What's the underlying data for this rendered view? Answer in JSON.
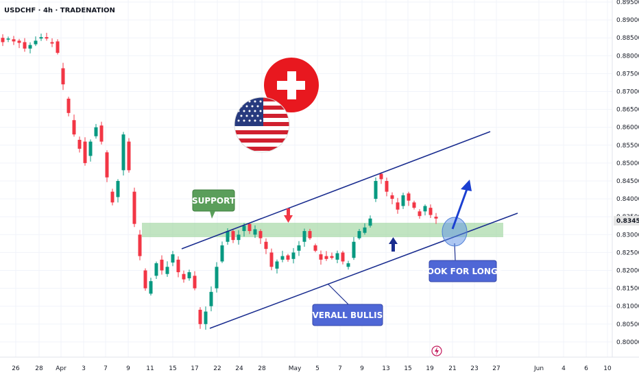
{
  "header": {
    "symbol": "USDCHF",
    "interval": "4h",
    "source": "TRADENATION"
  },
  "chart_data": {
    "type": "candlestick",
    "title": "USDCHF · 4h · TRADENATION",
    "ylim": [
      0.795,
      0.8955
    ],
    "y_ticks": [
      "0.89500",
      "0.89000",
      "0.88500",
      "0.88000",
      "0.87500",
      "0.87000",
      "0.86500",
      "0.86000",
      "0.85500",
      "0.85000",
      "0.84500",
      "0.84000",
      "0.83500",
      "0.83000",
      "0.82500",
      "0.82000",
      "0.81500",
      "0.81000",
      "0.80500",
      "0.80000"
    ],
    "x_ticks": [
      "26",
      "28",
      "Apr",
      "3",
      "7",
      "9",
      "11",
      "15",
      "17",
      "22",
      "24",
      "28",
      "May",
      "5",
      "7",
      "9",
      "13",
      "15",
      "19",
      "21",
      "23",
      "27",
      "Jun",
      "4",
      "6",
      "10"
    ],
    "current_price": "0.83453",
    "price_path": [
      [
        0.885,
        0.8838
      ],
      [
        0.8845,
        0.8848
      ],
      [
        0.8846,
        0.884
      ],
      [
        0.8842,
        0.8836
      ],
      [
        0.8838,
        0.882
      ],
      [
        0.882,
        0.883
      ],
      [
        0.8832,
        0.8842
      ],
      [
        0.8848,
        0.8852
      ],
      [
        0.8852,
        0.8848
      ],
      [
        0.8838,
        0.8834
      ],
      [
        0.884,
        0.8808
      ],
      [
        0.8765,
        0.872
      ],
      [
        0.868,
        0.864
      ],
      [
        0.862,
        0.858
      ],
      [
        0.8565,
        0.854
      ],
      [
        0.856,
        0.85
      ],
      [
        0.852,
        0.856
      ],
      [
        0.8575,
        0.86
      ],
      [
        0.8605,
        0.856
      ],
      [
        0.853,
        0.846
      ],
      [
        0.842,
        0.839
      ],
      [
        0.8405,
        0.845
      ],
      [
        0.848,
        0.858
      ],
      [
        0.856,
        0.848
      ],
      [
        0.842,
        0.833
      ],
      [
        0.83,
        0.824
      ],
      [
        0.82,
        0.815
      ],
      [
        0.8135,
        0.817
      ],
      [
        0.8185,
        0.822
      ],
      [
        0.823,
        0.82
      ],
      [
        0.819,
        0.821
      ],
      [
        0.8222,
        0.8245
      ],
      [
        0.823,
        0.8195
      ],
      [
        0.819,
        0.8175
      ],
      [
        0.8178,
        0.8195
      ],
      [
        0.8185,
        0.815
      ],
      [
        0.809,
        0.805
      ],
      [
        0.805,
        0.8085
      ],
      [
        0.81,
        0.814
      ],
      [
        0.815,
        0.821
      ],
      [
        0.8225,
        0.827
      ],
      [
        0.828,
        0.831
      ],
      [
        0.831,
        0.8285
      ],
      [
        0.8285,
        0.83
      ],
      [
        0.831,
        0.8325
      ],
      [
        0.833,
        0.831
      ],
      [
        0.83,
        0.8315
      ],
      [
        0.831,
        0.829
      ],
      [
        0.828,
        0.826
      ],
      [
        0.825,
        0.821
      ],
      [
        0.8205,
        0.8225
      ],
      [
        0.823,
        0.824
      ],
      [
        0.8242,
        0.823
      ],
      [
        0.8232,
        0.825
      ],
      [
        0.8255,
        0.827
      ],
      [
        0.828,
        0.831
      ],
      [
        0.831,
        0.829
      ],
      [
        0.827,
        0.8255
      ],
      [
        0.8245,
        0.823
      ],
      [
        0.824,
        0.8232
      ],
      [
        0.824,
        0.8235
      ],
      [
        0.823,
        0.8248
      ],
      [
        0.825,
        0.8225
      ],
      [
        0.821,
        0.822
      ],
      [
        0.8235,
        0.828
      ],
      [
        0.829,
        0.831
      ],
      [
        0.8305,
        0.832
      ],
      [
        0.8325,
        0.8345
      ],
      [
        0.84,
        0.845
      ],
      [
        0.847,
        0.8455
      ],
      [
        0.845,
        0.842
      ],
      [
        0.841,
        0.84
      ],
      [
        0.839,
        0.837
      ],
      [
        0.838,
        0.841
      ],
      [
        0.8415,
        0.8395
      ],
      [
        0.839,
        0.8375
      ],
      [
        0.8365,
        0.8352
      ],
      [
        0.8365,
        0.838
      ],
      [
        0.8375,
        0.8355
      ],
      [
        0.835,
        0.8345
      ]
    ],
    "channel": {
      "upper": [
        [
          "Apr 22",
          0.8285
        ],
        [
          "May 22",
          0.859
        ]
      ],
      "lower": [
        [
          "Apr 17",
          0.8045
        ],
        [
          "May 27",
          0.838
        ]
      ]
    },
    "support_zone": [
      0.83,
      0.834
    ],
    "annotations": [
      "SUPPORT",
      "LOOK FOR LONGS",
      "OVERALL BULLISH"
    ]
  }
}
